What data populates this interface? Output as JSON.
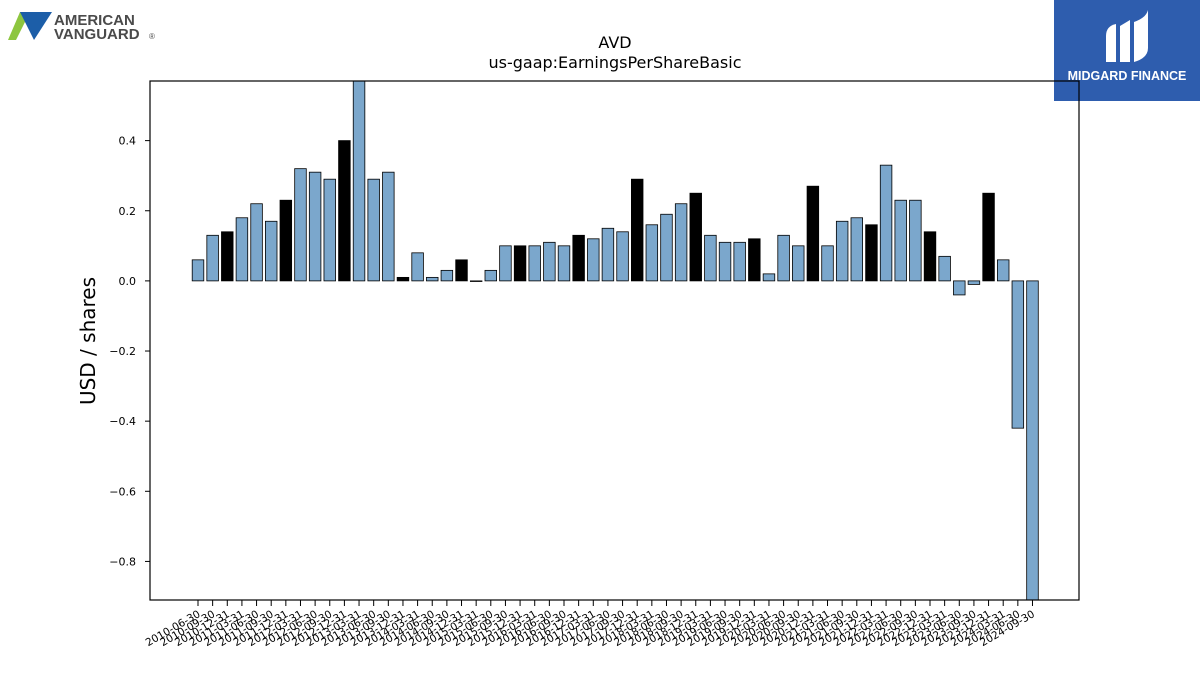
{
  "logos": {
    "left": {
      "line1": "AMERICAN",
      "line2": "VANGUARD",
      "mark": "®",
      "accent_green": "#8DC63F",
      "accent_blue": "#1C5EA8"
    },
    "right": {
      "text": "MIDGARD FINANCE",
      "background": "#2E5DAE"
    }
  },
  "chart_data": {
    "type": "bar",
    "title": "AVD",
    "subtitle": "us-gaap:EarningsPerShareBasic",
    "ylabel": "USD / shares",
    "xlabel": "",
    "ylim": [
      -0.91,
      0.57
    ],
    "yticks": [
      -0.8,
      -0.6,
      -0.4,
      -0.2,
      0.0,
      0.2,
      0.4
    ],
    "grid": false,
    "colors": {
      "quarter": "#7BA7CC",
      "annual": "#000000",
      "edge": "#000000"
    },
    "categories": [
      "2010-06-30",
      "2010-09-30",
      "2010-12-31",
      "2011-03-31",
      "2011-06-30",
      "2011-09-30",
      "2011-12-31",
      "2012-03-31",
      "2012-06-30",
      "2012-09-30",
      "2012-12-31",
      "2013-03-31",
      "2013-06-30",
      "2013-09-30",
      "2013-12-31",
      "2014-03-31",
      "2014-06-30",
      "2014-09-30",
      "2014-12-31",
      "2015-03-31",
      "2015-06-30",
      "2015-09-30",
      "2015-12-31",
      "2016-03-31",
      "2016-06-30",
      "2016-09-30",
      "2016-12-31",
      "2017-03-31",
      "2017-06-30",
      "2017-09-30",
      "2017-12-31",
      "2018-03-31",
      "2018-06-30",
      "2018-09-30",
      "2018-12-31",
      "2019-03-31",
      "2019-06-30",
      "2019-09-30",
      "2019-12-31",
      "2020-03-31",
      "2020-06-30",
      "2020-09-30",
      "2020-12-31",
      "2021-03-31",
      "2021-06-30",
      "2021-09-30",
      "2021-12-31",
      "2022-03-31",
      "2022-06-30",
      "2022-09-30",
      "2022-12-31",
      "2023-03-31",
      "2023-06-30",
      "2023-09-30",
      "2023-12-31",
      "2024-03-31",
      "2024-06-30",
      "2024-09-30"
    ],
    "values": [
      0.06,
      0.13,
      0.14,
      0.18,
      0.22,
      0.17,
      0.23,
      0.32,
      0.31,
      0.29,
      0.4,
      0.59,
      0.29,
      0.31,
      0.01,
      0.08,
      0.01,
      0.03,
      0.06,
      0.0,
      0.03,
      0.1,
      0.1,
      0.1,
      0.11,
      0.1,
      0.13,
      0.12,
      0.15,
      0.14,
      0.29,
      0.16,
      0.19,
      0.22,
      0.25,
      0.13,
      0.11,
      0.11,
      0.12,
      0.02,
      0.13,
      0.1,
      0.27,
      0.1,
      0.17,
      0.18,
      0.16,
      0.33,
      0.23,
      0.23,
      0.14,
      0.07,
      -0.04,
      -0.01,
      0.25,
      0.06,
      -0.42,
      -0.95
    ],
    "annual": [
      false,
      false,
      true,
      false,
      false,
      false,
      true,
      false,
      false,
      false,
      true,
      false,
      false,
      false,
      true,
      false,
      false,
      false,
      true,
      false,
      false,
      false,
      true,
      false,
      false,
      false,
      true,
      false,
      false,
      false,
      true,
      false,
      false,
      false,
      true,
      false,
      false,
      false,
      true,
      false,
      false,
      false,
      true,
      false,
      false,
      false,
      true,
      false,
      false,
      false,
      true,
      false,
      false,
      false,
      true,
      false,
      false,
      false
    ]
  }
}
